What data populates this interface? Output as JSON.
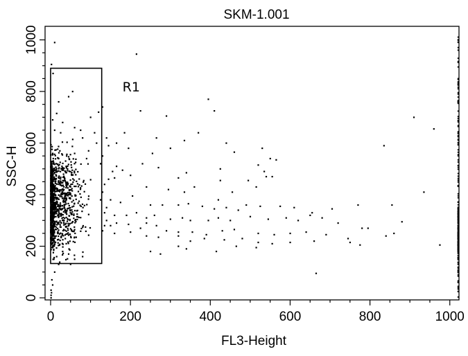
{
  "chart_data": {
    "type": "scatter",
    "title": "SKM-1.001",
    "xlabel": "FL3-Height",
    "ylabel": "SSC-H",
    "xlim": [
      0,
      1023
    ],
    "ylim": [
      0,
      1023
    ],
    "x_ticks": [
      0,
      200,
      400,
      600,
      800,
      1000
    ],
    "y_ticks": [
      0,
      200,
      400,
      600,
      800,
      1000
    ],
    "x_tick_labels": [
      "0",
      "200",
      "400",
      "600",
      "800",
      "1000"
    ],
    "y_tick_labels": [
      "0",
      "200",
      "400",
      "600",
      "800",
      "1000"
    ],
    "minor_tick_step": 50,
    "grid": false,
    "legend": "none",
    "point_color": "#000000",
    "gate": {
      "label": "R1",
      "x_range": [
        0,
        128
      ],
      "y_range": [
        133,
        890
      ]
    },
    "points": [
      [
        10,
        990
      ],
      [
        215,
        945
      ],
      [
        2,
        905
      ],
      [
        6,
        870
      ],
      [
        395,
        770
      ],
      [
        410,
        725
      ],
      [
        225,
        725
      ],
      [
        20,
        760
      ],
      [
        55,
        800
      ],
      [
        45,
        780
      ],
      [
        130,
        740
      ],
      [
        15,
        715
      ],
      [
        120,
        720
      ],
      [
        100,
        700
      ],
      [
        290,
        705
      ],
      [
        910,
        700
      ],
      [
        960,
        655
      ],
      [
        5,
        690
      ],
      [
        30,
        680
      ],
      [
        60,
        660
      ],
      [
        75,
        650
      ],
      [
        110,
        640
      ],
      [
        185,
        640
      ],
      [
        265,
        620
      ],
      [
        370,
        640
      ],
      [
        335,
        610
      ],
      [
        440,
        600
      ],
      [
        530,
        580
      ],
      [
        835,
        590
      ],
      [
        10,
        650
      ],
      [
        25,
        640
      ],
      [
        80,
        620
      ],
      [
        115,
        600
      ],
      [
        140,
        620
      ],
      [
        165,
        600
      ],
      [
        195,
        580
      ],
      [
        255,
        560
      ],
      [
        300,
        580
      ],
      [
        460,
        565
      ],
      [
        550,
        540
      ],
      [
        565,
        535
      ],
      [
        95,
        570
      ],
      [
        60,
        560
      ],
      [
        40,
        550
      ],
      [
        20,
        540
      ],
      [
        5,
        560
      ],
      [
        8,
        520
      ],
      [
        90,
        540
      ],
      [
        125,
        520
      ],
      [
        165,
        510
      ],
      [
        180,
        495
      ],
      [
        230,
        520
      ],
      [
        270,
        505
      ],
      [
        340,
        485
      ],
      [
        425,
        500
      ],
      [
        520,
        515
      ],
      [
        535,
        490
      ],
      [
        555,
        470
      ],
      [
        160,
        465
      ],
      [
        200,
        475
      ],
      [
        240,
        430
      ],
      [
        320,
        465
      ],
      [
        360,
        430
      ],
      [
        425,
        455
      ],
      [
        495,
        455
      ],
      [
        295,
        420
      ],
      [
        335,
        410
      ],
      [
        420,
        380
      ],
      [
        455,
        410
      ],
      [
        515,
        430
      ],
      [
        540,
        470
      ],
      [
        935,
        410
      ],
      [
        150,
        380
      ],
      [
        175,
        370
      ],
      [
        205,
        395
      ],
      [
        250,
        360
      ],
      [
        280,
        360
      ],
      [
        320,
        360
      ],
      [
        345,
        365
      ],
      [
        380,
        355
      ],
      [
        410,
        345
      ],
      [
        440,
        350
      ],
      [
        470,
        340
      ],
      [
        490,
        360
      ],
      [
        525,
        355
      ],
      [
        575,
        355
      ],
      [
        610,
        350
      ],
      [
        655,
        330
      ],
      [
        705,
        345
      ],
      [
        770,
        360
      ],
      [
        855,
        360
      ],
      [
        140,
        350
      ],
      [
        135,
        330
      ],
      [
        160,
        320
      ],
      [
        190,
        320
      ],
      [
        215,
        330
      ],
      [
        240,
        310
      ],
      [
        260,
        320
      ],
      [
        300,
        305
      ],
      [
        330,
        310
      ],
      [
        350,
        300
      ],
      [
        395,
        300
      ],
      [
        420,
        310
      ],
      [
        450,
        300
      ],
      [
        500,
        315
      ],
      [
        545,
        305
      ],
      [
        590,
        310
      ],
      [
        620,
        300
      ],
      [
        650,
        320
      ],
      [
        680,
        310
      ],
      [
        720,
        290
      ],
      [
        780,
        270
      ],
      [
        140,
        300
      ],
      [
        165,
        290
      ],
      [
        195,
        285
      ],
      [
        225,
        270
      ],
      [
        240,
        290
      ],
      [
        265,
        280
      ],
      [
        290,
        260
      ],
      [
        320,
        255
      ],
      [
        355,
        255
      ],
      [
        390,
        245
      ],
      [
        430,
        260
      ],
      [
        460,
        265
      ],
      [
        520,
        250
      ],
      [
        560,
        245
      ],
      [
        600,
        250
      ],
      [
        640,
        255
      ],
      [
        690,
        245
      ],
      [
        745,
        230
      ],
      [
        795,
        270
      ],
      [
        840,
        240
      ],
      [
        200,
        255
      ],
      [
        240,
        240
      ],
      [
        270,
        235
      ],
      [
        320,
        240
      ],
      [
        350,
        220
      ],
      [
        385,
        230
      ],
      [
        435,
        225
      ],
      [
        480,
        230
      ],
      [
        520,
        215
      ],
      [
        555,
        210
      ],
      [
        600,
        215
      ],
      [
        660,
        220
      ],
      [
        750,
        215
      ],
      [
        775,
        205
      ],
      [
        860,
        250
      ],
      [
        880,
        295
      ],
      [
        975,
        205
      ],
      [
        320,
        200
      ],
      [
        340,
        190
      ],
      [
        415,
        180
      ],
      [
        250,
        180
      ],
      [
        275,
        170
      ],
      [
        465,
        200
      ],
      [
        515,
        195
      ],
      [
        665,
        95
      ],
      [
        125,
        380
      ],
      [
        130,
        410
      ],
      [
        135,
        440
      ],
      [
        145,
        460
      ],
      [
        155,
        490
      ],
      [
        130,
        550
      ],
      [
        145,
        590
      ],
      [
        150,
        280
      ],
      [
        160,
        250
      ],
      [
        130,
        260
      ],
      [
        135,
        280
      ],
      [
        10,
        100
      ],
      [
        5,
        50
      ],
      [
        2,
        20
      ],
      [
        3,
        70
      ],
      [
        20,
        130
      ],
      [
        15,
        160
      ],
      [
        8,
        150
      ],
      [
        30,
        180
      ],
      [
        45,
        170
      ],
      [
        60,
        150
      ],
      [
        80,
        160
      ],
      [
        1,
        0
      ],
      [
        1,
        10
      ],
      [
        1,
        30
      ]
    ]
  }
}
